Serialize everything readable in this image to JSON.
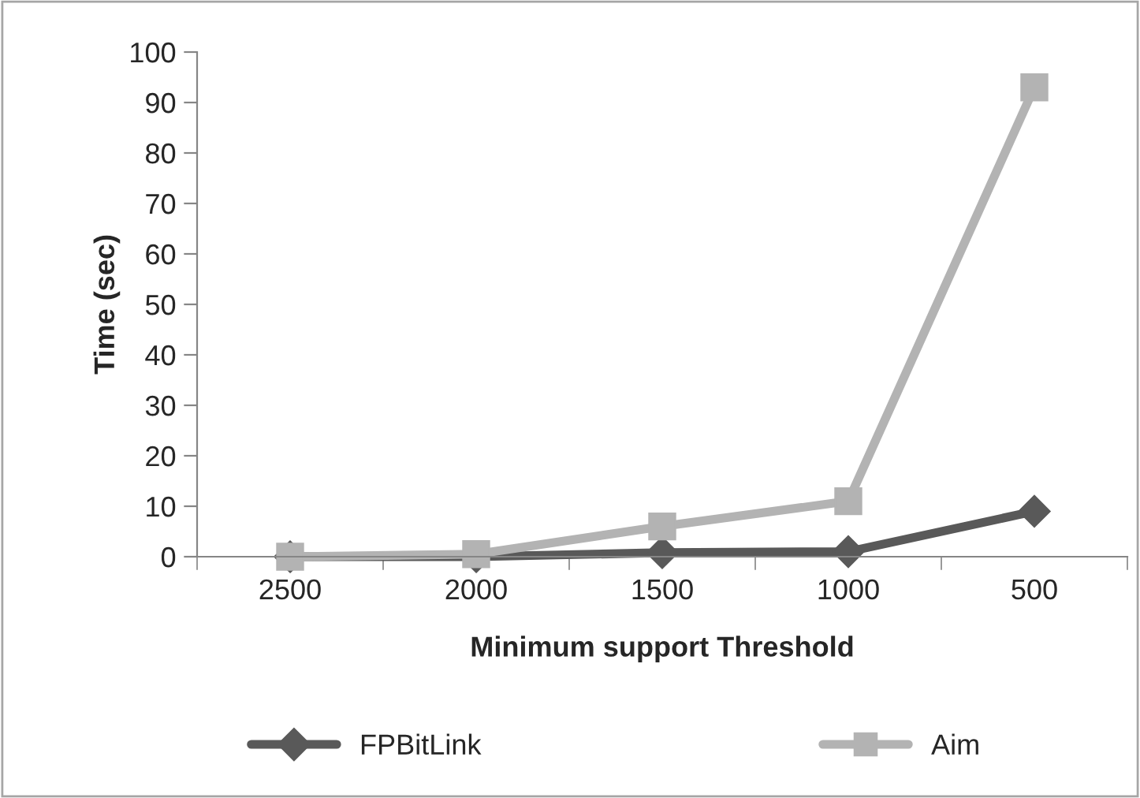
{
  "chart_data": {
    "type": "line",
    "categories": [
      "2500",
      "2000",
      "1500",
      "1000",
      "500"
    ],
    "xlabel": "Minimum support Threshold",
    "ylabel": "Time (sec)",
    "series": [
      {
        "name": "FPBitLink",
        "color": "#595959",
        "marker": "diamond",
        "values": [
          0,
          0,
          0.8,
          1,
          9
        ]
      },
      {
        "name": "Aim",
        "color": "#b3b3b3",
        "marker": "square",
        "values": [
          0,
          0.5,
          6,
          11,
          93
        ]
      }
    ],
    "ylim": [
      0,
      100
    ],
    "yticks": [
      0,
      10,
      20,
      30,
      40,
      50,
      60,
      70,
      80,
      90,
      100
    ],
    "grid": false,
    "legend": "bottom",
    "line_style": "solid"
  }
}
